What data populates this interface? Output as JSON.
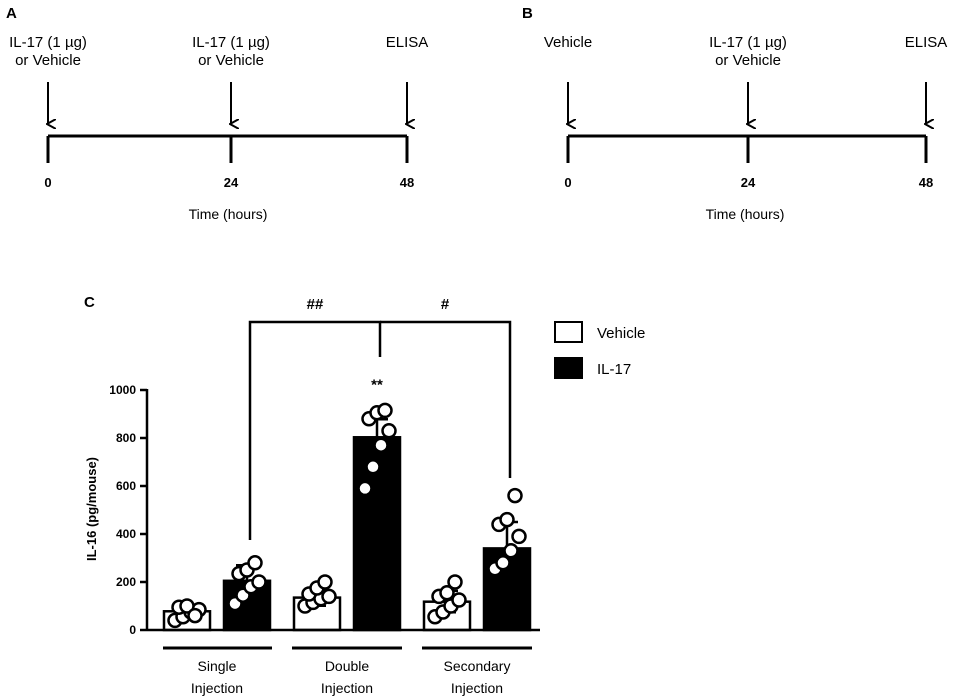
{
  "panelA": {
    "label": "A",
    "events": [
      {
        "lines": [
          "IL-17 (1 µg)",
          "or Vehicle"
        ]
      },
      {
        "lines": [
          "IL-17 (1 µg)",
          "or Vehicle"
        ]
      },
      {
        "lines": [
          "ELISA"
        ]
      }
    ],
    "ticks": [
      "0",
      "24",
      "48"
    ],
    "axis_title": "Time (hours)"
  },
  "panelB": {
    "label": "B",
    "events": [
      {
        "lines": [
          "Vehicle"
        ]
      },
      {
        "lines": [
          "IL-17 (1 µg)",
          "or Vehicle"
        ]
      },
      {
        "lines": [
          "ELISA"
        ]
      }
    ],
    "ticks": [
      "0",
      "24",
      "48"
    ],
    "axis_title": "Time (hours)"
  },
  "panelC": {
    "label": "C",
    "legend": [
      {
        "label": "Vehicle",
        "fill": "#ffffff"
      },
      {
        "label": "IL-17",
        "fill": "#000000"
      }
    ],
    "brackets": [
      {
        "label": "##"
      },
      {
        "label": "#"
      }
    ],
    "group_lines": [
      [
        "Single",
        "Injection"
      ],
      [
        "Double",
        "Injection"
      ],
      [
        "Secondary",
        "Injection"
      ]
    ]
  },
  "chart_data": {
    "type": "bar",
    "ylabel": "IL-16  (pg/mouse)",
    "ylim": [
      0,
      1000
    ],
    "yticks": [
      0,
      200,
      400,
      600,
      800,
      1000
    ],
    "categories": [
      "Single Injection",
      "Double Injection",
      "Secondary Injection"
    ],
    "series": [
      {
        "name": "Vehicle",
        "fill": "#ffffff",
        "values": [
          78,
          135,
          118
        ],
        "errors": [
          25,
          35,
          45
        ],
        "points": [
          [
            40,
            55,
            75,
            85,
            95,
            100,
            60
          ],
          [
            100,
            115,
            130,
            140,
            150,
            175,
            200
          ],
          [
            55,
            75,
            100,
            125,
            140,
            155,
            200
          ]
        ]
      },
      {
        "name": "IL-17",
        "fill": "#000000",
        "values": [
          205,
          803,
          340
        ],
        "errors": [
          65,
          75,
          110
        ],
        "points": [
          [
            110,
            145,
            180,
            200,
            235,
            250,
            280
          ],
          [
            590,
            680,
            770,
            830,
            880,
            905,
            915
          ],
          [
            255,
            280,
            330,
            390,
            440,
            460,
            560
          ]
        ]
      }
    ],
    "annotations": [
      {
        "text": "**",
        "category": "Double Injection",
        "series": "IL-17"
      }
    ]
  }
}
